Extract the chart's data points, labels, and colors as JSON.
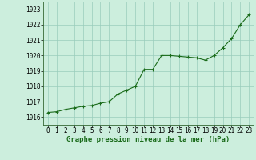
{
  "x": [
    0,
    1,
    2,
    3,
    4,
    5,
    6,
    7,
    8,
    9,
    10,
    11,
    12,
    13,
    14,
    15,
    16,
    17,
    18,
    19,
    20,
    21,
    22,
    23
  ],
  "y": [
    1016.3,
    1016.35,
    1016.5,
    1016.6,
    1016.7,
    1016.75,
    1016.9,
    1017.0,
    1017.5,
    1017.75,
    1018.0,
    1019.1,
    1019.1,
    1020.0,
    1020.0,
    1019.95,
    1019.9,
    1019.85,
    1019.7,
    1020.0,
    1020.5,
    1021.1,
    1022.0,
    1022.65
  ],
  "line_color": "#1a6b1a",
  "marker_color": "#1a6b1a",
  "bg_color": "#cceedd",
  "grid_color": "#99ccbb",
  "xlabel": "Graphe pression niveau de la mer (hPa)",
  "ylim": [
    1015.5,
    1023.5
  ],
  "xlim": [
    -0.5,
    23.5
  ],
  "yticks": [
    1016,
    1017,
    1018,
    1019,
    1020,
    1021,
    1022,
    1023
  ],
  "xticks": [
    0,
    1,
    2,
    3,
    4,
    5,
    6,
    7,
    8,
    9,
    10,
    11,
    12,
    13,
    14,
    15,
    16,
    17,
    18,
    19,
    20,
    21,
    22,
    23
  ],
  "label_fontsize": 6.5,
  "tick_fontsize": 5.5
}
